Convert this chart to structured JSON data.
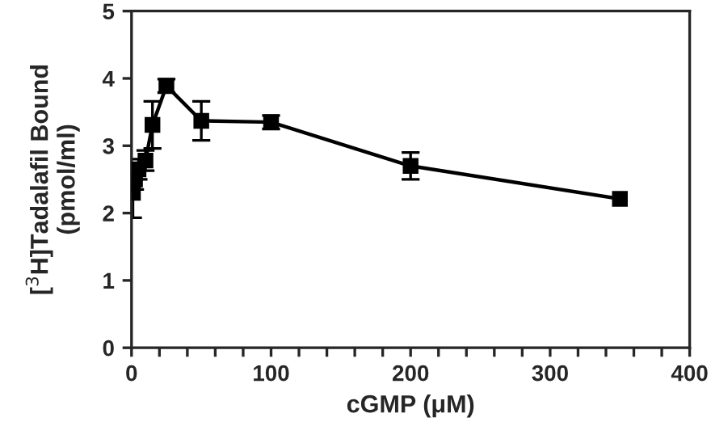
{
  "chart_data": {
    "type": "line",
    "xlabel": "cGMP (μM)",
    "ylabel": "[$^{3}$H]Tadalafil Bound\n(pmol/ml)",
    "x": [
      0,
      1,
      2.5,
      5,
      10,
      15,
      25,
      50,
      100,
      200,
      350
    ],
    "series": [
      {
        "color": "#000000",
        "values": [
          2.43,
          2.3,
          2.5,
          2.65,
          2.78,
          3.31,
          3.89,
          3.37,
          3.35,
          2.7,
          2.21
        ],
        "errors": [
          0.18,
          0.37,
          0.15,
          0.15,
          0.15,
          0.35,
          0.1,
          0.29,
          0.1,
          0.2,
          null
        ]
      }
    ],
    "xlim": [
      0,
      400
    ],
    "ylim": [
      0,
      5
    ],
    "xticks": [
      0,
      {
        "value": 20,
        "label": null
      },
      {
        "value": 40,
        "label": null
      },
      {
        "value": 60,
        "label": null
      },
      {
        "value": 80,
        "label": null
      },
      100,
      {
        "value": 120,
        "label": null
      },
      {
        "value": 140,
        "label": null
      },
      {
        "value": 160,
        "label": null
      },
      {
        "value": 180,
        "label": null
      },
      200,
      {
        "value": 220,
        "label": null
      },
      {
        "value": 240,
        "label": null
      },
      {
        "value": 260,
        "label": null
      },
      {
        "value": 280,
        "label": null
      },
      300,
      {
        "value": 320,
        "label": null
      },
      {
        "value": 340,
        "label": null
      },
      {
        "value": 360,
        "label": null
      },
      {
        "value": 380,
        "label": null
      },
      400
    ],
    "yticks": [
      0,
      1,
      2,
      3,
      4,
      5
    ],
    "marker": "square",
    "line_style": "solid",
    "grid": false,
    "legend": false
  }
}
